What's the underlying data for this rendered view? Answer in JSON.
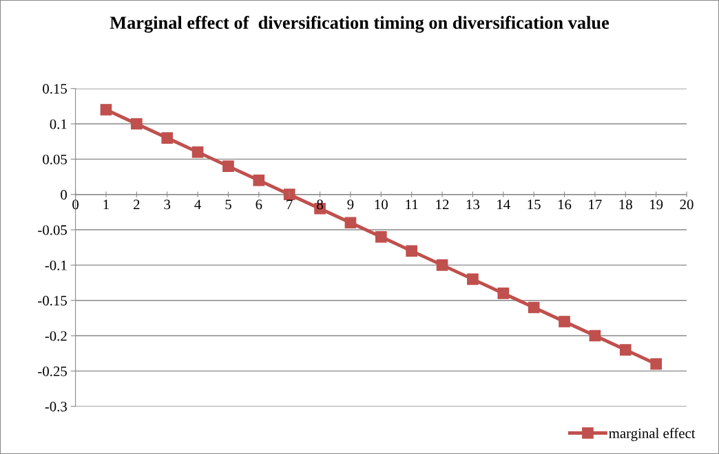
{
  "chart_data": {
    "type": "line",
    "title": "Marginal effect of  diversification timing on diversification value",
    "x": [
      1,
      2,
      3,
      4,
      5,
      6,
      7,
      8,
      9,
      10,
      11,
      12,
      13,
      14,
      15,
      16,
      17,
      18,
      19
    ],
    "series": [
      {
        "name": "marginal effect",
        "color": "#c0504d",
        "values": [
          0.12,
          0.1,
          0.08,
          0.06,
          0.04,
          0.02,
          0.0,
          -0.02,
          -0.04,
          -0.06,
          -0.08,
          -0.1,
          -0.12,
          -0.14,
          -0.16,
          -0.18,
          -0.2,
          -0.22,
          -0.24
        ]
      }
    ],
    "xlim": [
      0,
      20
    ],
    "xticks": [
      0,
      1,
      2,
      3,
      4,
      5,
      6,
      7,
      8,
      9,
      10,
      11,
      12,
      13,
      14,
      15,
      16,
      17,
      18,
      19,
      20
    ],
    "ylim": [
      -0.3,
      0.15
    ],
    "yticks": [
      -0.3,
      -0.25,
      -0.2,
      -0.15,
      -0.1,
      -0.05,
      0,
      0.05,
      0.1,
      0.15
    ],
    "grid": "y",
    "legend": "bottom right",
    "marker": "square",
    "line_style": "solid"
  }
}
